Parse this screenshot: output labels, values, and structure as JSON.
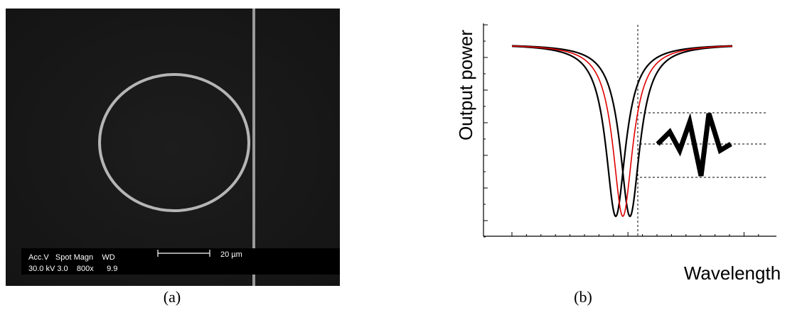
{
  "panel_a": {
    "info_labels": "Acc.V   Spot Magn    WD",
    "info_values": "30.0 kV 3.0    800x      9.9",
    "scale_label": "20 µm",
    "caption": "(a)"
  },
  "panel_b": {
    "y_label": "Output power",
    "x_label": "Wavelength",
    "caption": "(b)"
  }
}
